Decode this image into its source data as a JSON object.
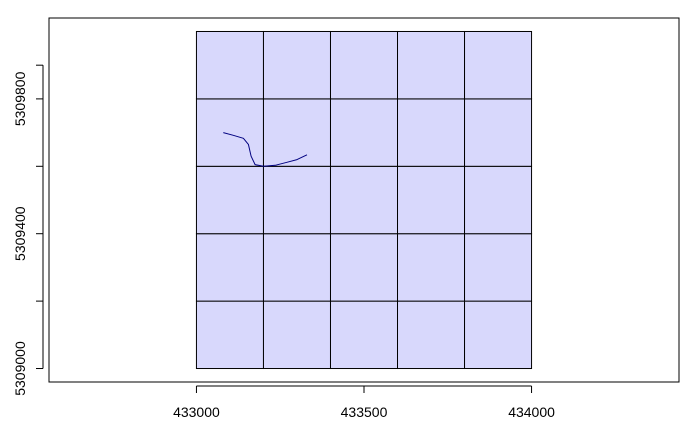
{
  "chart_data": {
    "type": "map",
    "title": "",
    "xlabel": "",
    "ylabel": "",
    "xlim": [
      432560,
      434440
    ],
    "ylim": [
      5308960,
      5310040
    ],
    "x_ticks": [
      433000,
      433500,
      434000
    ],
    "y_ticks": [
      5309000,
      5309400,
      5309800
    ],
    "x_tick_labels": [
      "433000",
      "433500",
      "434000"
    ],
    "y_tick_labels": [
      "5309000",
      "5309400",
      "5309800"
    ],
    "grid": {
      "x_edges": [
        433000,
        433200,
        433400,
        433600,
        433800,
        434000
      ],
      "y_edges": [
        5309000,
        5309200,
        5309400,
        5309600,
        5309800,
        5310000
      ],
      "fill_color": "#d8d8fc",
      "line_color": "#000000"
    },
    "line": {
      "color": "#000080",
      "points": [
        [
          433080,
          5309700
        ],
        [
          433110,
          5309692
        ],
        [
          433140,
          5309683
        ],
        [
          433155,
          5309665
        ],
        [
          433163,
          5309630
        ],
        [
          433175,
          5309605
        ],
        [
          433200,
          5309600
        ],
        [
          433235,
          5309603
        ],
        [
          433270,
          5309612
        ],
        [
          433300,
          5309620
        ],
        [
          433330,
          5309634
        ]
      ]
    }
  }
}
